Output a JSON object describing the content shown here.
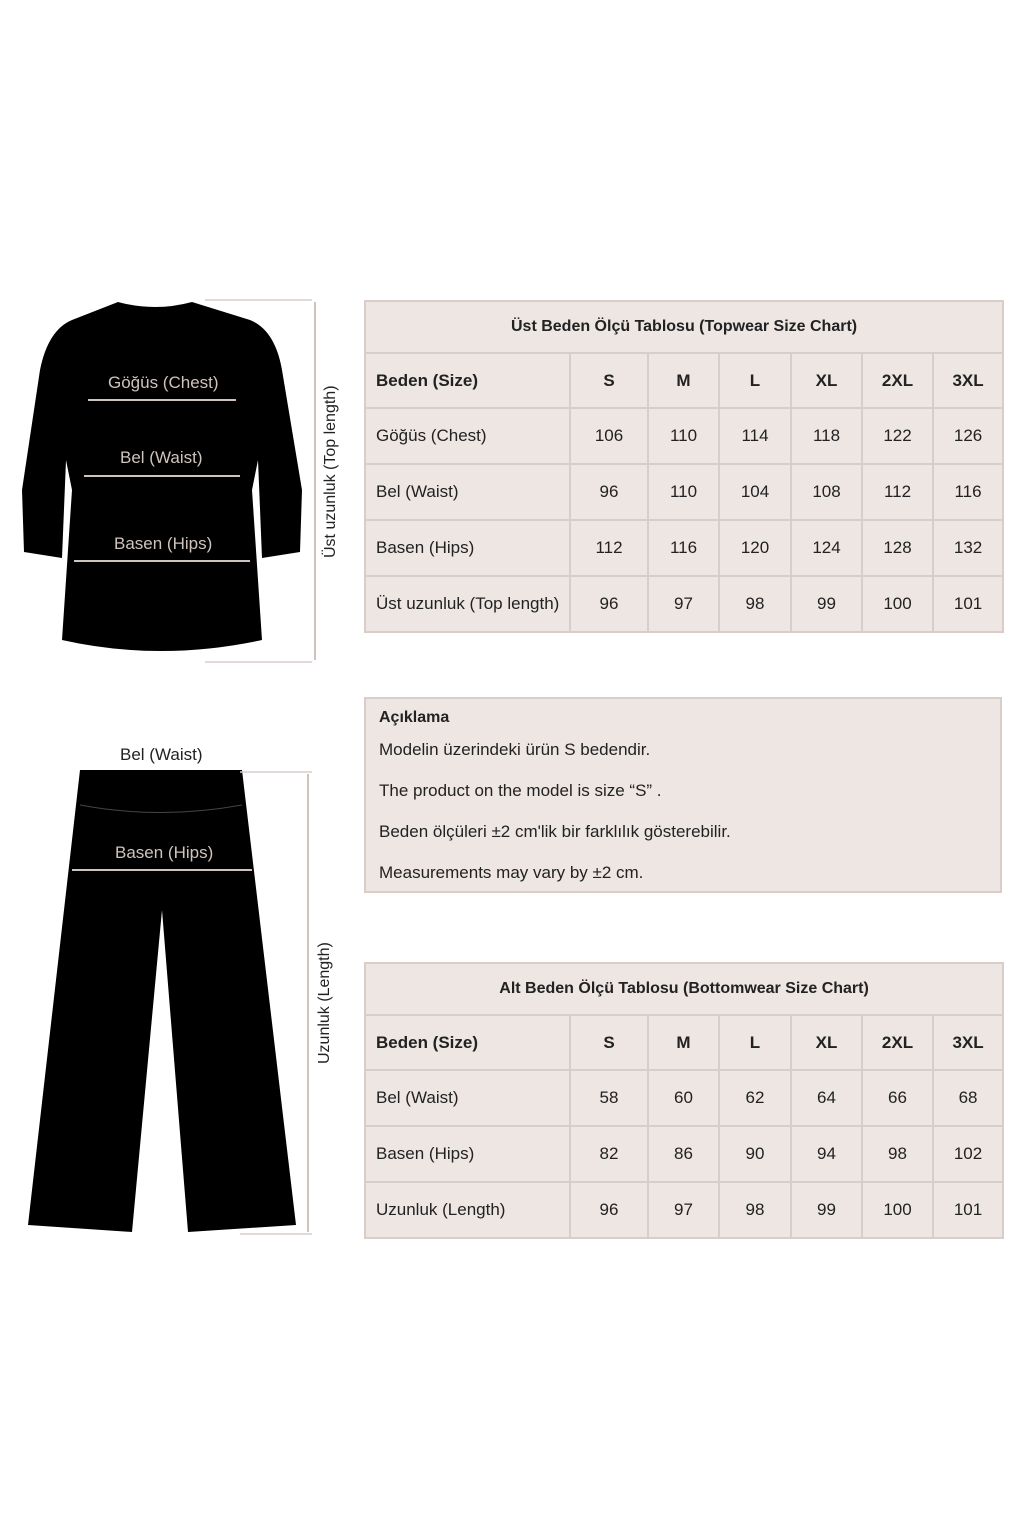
{
  "top_figure": {
    "chest": "Göğüs (Chest)",
    "waist": "Bel (Waist)",
    "hips": "Basen (Hips)",
    "length": "Üst uzunluk (Top length)"
  },
  "bottom_figure": {
    "waist": "Bel (Waist)",
    "hips": "Basen (Hips)",
    "length": "Uzunluk (Length)"
  },
  "topwear": {
    "title": "Üst Beden Ölçü Tablosu (Topwear Size Chart)",
    "header": [
      "Beden (Size)",
      "S",
      "M",
      "L",
      "XL",
      "2XL",
      "3XL"
    ],
    "rows": [
      [
        "Göğüs (Chest)",
        "106",
        "110",
        "114",
        "118",
        "122",
        "126"
      ],
      [
        "Bel (Waist)",
        "96",
        "110",
        "104",
        "108",
        "112",
        "116"
      ],
      [
        "Basen (Hips)",
        "112",
        "116",
        "120",
        "124",
        "128",
        "132"
      ],
      [
        "Üst uzunluk (Top length)",
        "96",
        "97",
        "98",
        "99",
        "100",
        "101"
      ]
    ]
  },
  "note": {
    "title": "Açıklama",
    "lines": [
      "Modelin üzerindeki ürün S bedendir.",
      "The product on the model is size “S” .",
      "Beden ölçüleri ±2 cm'lik bir farklılık gösterebilir.",
      "Measurements may vary by ±2 cm."
    ]
  },
  "bottomwear": {
    "title": "Alt Beden Ölçü Tablosu (Bottomwear Size Chart)",
    "header": [
      "Beden (Size)",
      "S",
      "M",
      "L",
      "XL",
      "2XL",
      "3XL"
    ],
    "rows": [
      [
        "Bel (Waist)",
        "58",
        "60",
        "62",
        "64",
        "66",
        "68"
      ],
      [
        "Basen (Hips)",
        "82",
        "86",
        "90",
        "94",
        "98",
        "102"
      ],
      [
        "Uzunluk (Length)",
        "96",
        "97",
        "98",
        "99",
        "100",
        "101"
      ]
    ]
  },
  "colors": {
    "panel": "#ede6e3",
    "border": "#d8cdc8",
    "garment": "#000000",
    "arrow": "#cfc4bd"
  }
}
